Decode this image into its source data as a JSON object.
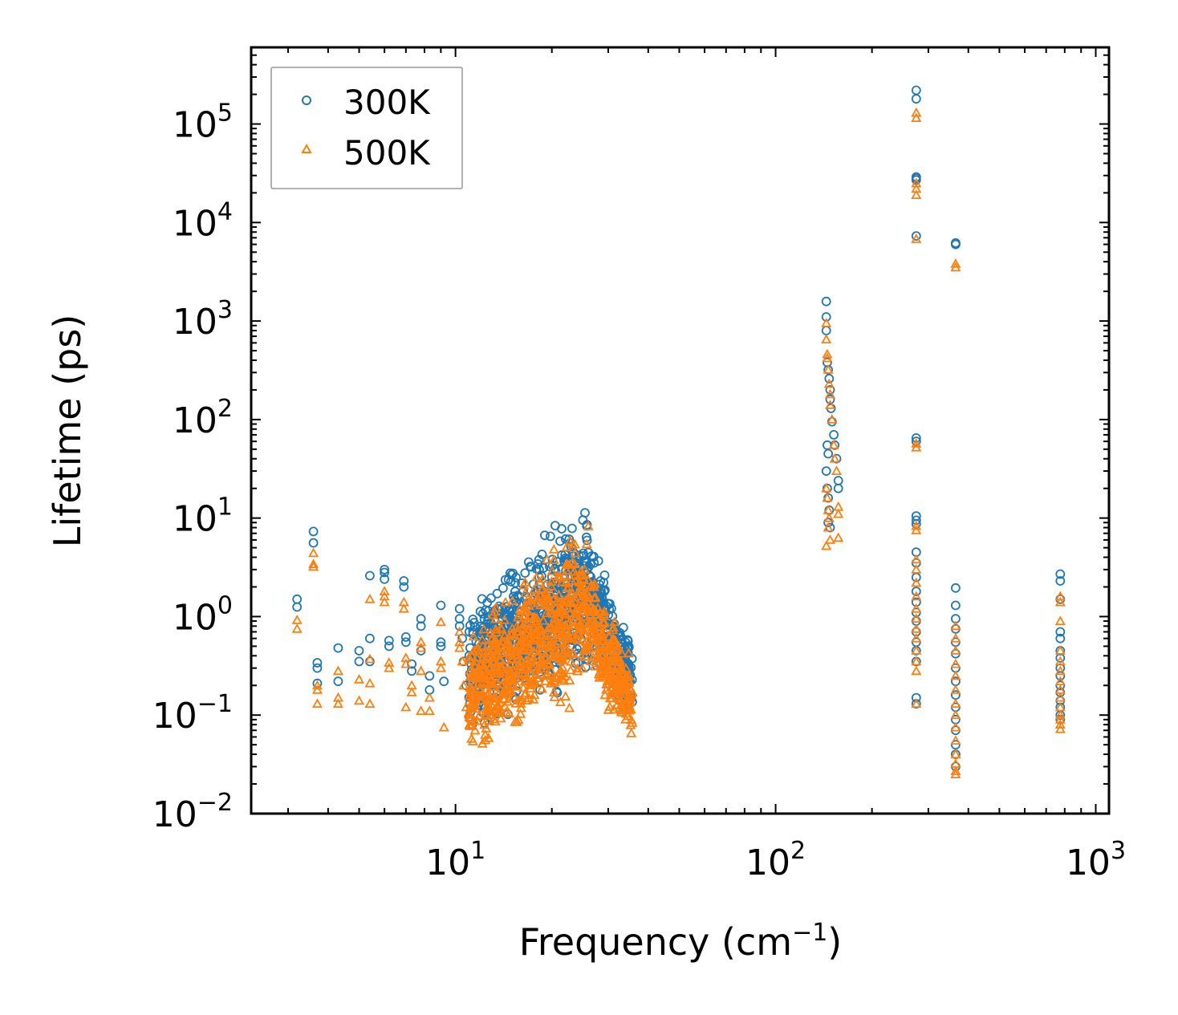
{
  "chart_data": {
    "type": "scatter",
    "title": "",
    "xlabel": "Frequency (cm",
    "xlabel_sup": "−1",
    "xlabel_end": ")",
    "ylabel": "Lifetime (ps)",
    "xscale": "log",
    "yscale": "log",
    "xlim": [
      2.3,
      1100
    ],
    "ylim": [
      0.01,
      600000
    ],
    "x_ticks": [
      {
        "base": "10",
        "exp": "1",
        "value": 10
      },
      {
        "base": "10",
        "exp": "2",
        "value": 100
      },
      {
        "base": "10",
        "exp": "3",
        "value": 1000
      }
    ],
    "y_ticks": [
      {
        "base": "10",
        "exp": "−2",
        "value": 0.01
      },
      {
        "base": "10",
        "exp": "−1",
        "value": 0.1
      },
      {
        "base": "10",
        "exp": "0",
        "value": 1
      },
      {
        "base": "10",
        "exp": "1",
        "value": 10
      },
      {
        "base": "10",
        "exp": "2",
        "value": 100
      },
      {
        "base": "10",
        "exp": "3",
        "value": 1000
      },
      {
        "base": "10",
        "exp": "4",
        "value": 10000
      },
      {
        "base": "10",
        "exp": "5",
        "value": 100000
      }
    ],
    "legend_position": "top-left",
    "series": [
      {
        "name": "300K",
        "marker": "circle",
        "color": "#1f77b4",
        "points": [
          [
            3.2,
            1.5
          ],
          [
            3.2,
            1.25
          ],
          [
            3.6,
            7.3
          ],
          [
            3.6,
            5.6
          ],
          [
            3.7,
            0.34
          ],
          [
            3.7,
            0.3
          ],
          [
            3.7,
            0.21
          ],
          [
            4.3,
            0.48
          ],
          [
            4.3,
            0.22
          ],
          [
            5.0,
            0.45
          ],
          [
            5.0,
            0.35
          ],
          [
            5.4,
            2.6
          ],
          [
            5.4,
            0.6
          ],
          [
            5.4,
            0.35
          ],
          [
            6.0,
            3.0
          ],
          [
            6.0,
            2.8
          ],
          [
            6.0,
            2.4
          ],
          [
            6.2,
            0.57
          ],
          [
            6.2,
            0.5
          ],
          [
            6.9,
            2.3
          ],
          [
            6.9,
            2.0
          ],
          [
            7.0,
            0.62
          ],
          [
            7.0,
            0.55
          ],
          [
            7.3,
            0.33
          ],
          [
            7.3,
            0.28
          ],
          [
            7.8,
            0.95
          ],
          [
            7.8,
            0.8
          ],
          [
            7.8,
            0.45
          ],
          [
            8.3,
            0.25
          ],
          [
            8.3,
            0.18
          ],
          [
            9.0,
            1.3
          ],
          [
            9.0,
            0.55
          ],
          [
            9.0,
            0.5
          ],
          [
            9.2,
            0.22
          ],
          [
            10.3,
            1.2
          ],
          [
            10.3,
            0.95
          ],
          [
            10.3,
            0.8
          ],
          [
            10.5,
            0.6
          ],
          [
            10.6,
            0.35
          ],
          [
            10.8,
            0.2
          ],
          [
            144,
            1580
          ],
          [
            144,
            1100
          ],
          [
            144,
            800
          ],
          [
            145,
            380
          ],
          [
            146,
            320
          ],
          [
            147,
            260
          ],
          [
            148,
            200
          ],
          [
            148,
            160
          ],
          [
            149,
            130
          ],
          [
            150,
            95
          ],
          [
            152,
            70
          ],
          [
            153,
            55
          ],
          [
            155,
            40
          ],
          [
            157,
            24
          ],
          [
            157,
            20
          ],
          [
            145,
            55
          ],
          [
            146,
            45
          ],
          [
            144,
            30
          ],
          [
            145,
            20
          ],
          [
            146,
            16
          ],
          [
            147,
            12
          ],
          [
            146,
            9
          ],
          [
            148,
            8
          ],
          [
            275,
            220000
          ],
          [
            275,
            180000
          ],
          [
            275,
            29000
          ],
          [
            275,
            28000
          ],
          [
            275,
            27000
          ],
          [
            275,
            7300
          ],
          [
            275,
            65
          ],
          [
            275,
            60
          ],
          [
            275,
            10.5
          ],
          [
            275,
            9.5
          ],
          [
            275,
            8.7
          ],
          [
            275,
            4.5
          ],
          [
            275,
            3.5
          ],
          [
            275,
            2.5
          ],
          [
            275,
            1.8
          ],
          [
            275,
            1.4
          ],
          [
            275,
            1.1
          ],
          [
            275,
            0.9
          ],
          [
            275,
            0.7
          ],
          [
            275,
            0.55
          ],
          [
            275,
            0.45
          ],
          [
            275,
            0.35
          ],
          [
            275,
            0.15
          ],
          [
            275,
            0.13
          ],
          [
            365,
            6200
          ],
          [
            365,
            6000
          ],
          [
            365,
            1.95
          ],
          [
            365,
            1.3
          ],
          [
            365,
            0.95
          ],
          [
            365,
            0.75
          ],
          [
            365,
            0.55
          ],
          [
            365,
            0.42
          ],
          [
            365,
            0.3
          ],
          [
            365,
            0.22
          ],
          [
            365,
            0.16
          ],
          [
            365,
            0.12
          ],
          [
            365,
            0.09
          ],
          [
            365,
            0.07
          ],
          [
            365,
            0.05
          ],
          [
            365,
            0.04
          ],
          [
            365,
            0.03
          ],
          [
            775,
            2.7
          ],
          [
            775,
            2.3
          ],
          [
            775,
            1.5
          ],
          [
            775,
            0.7
          ],
          [
            775,
            0.6
          ],
          [
            775,
            0.45
          ],
          [
            775,
            0.38
          ],
          [
            775,
            0.3
          ],
          [
            775,
            0.25
          ],
          [
            775,
            0.2
          ],
          [
            775,
            0.17
          ],
          [
            775,
            0.14
          ],
          [
            775,
            0.12
          ],
          [
            775,
            0.1
          ],
          [
            775,
            0.09
          ]
        ]
      },
      {
        "name": "500K",
        "marker": "triangle",
        "color": "#ff7f0e",
        "points": [
          [
            3.2,
            0.92
          ],
          [
            3.2,
            0.75
          ],
          [
            3.6,
            4.4
          ],
          [
            3.6,
            3.4
          ],
          [
            3.6,
            3.2
          ],
          [
            3.7,
            0.2
          ],
          [
            3.7,
            0.18
          ],
          [
            3.7,
            0.13
          ],
          [
            4.3,
            0.28
          ],
          [
            4.3,
            0.15
          ],
          [
            4.3,
            0.13
          ],
          [
            5.0,
            0.23
          ],
          [
            5.0,
            0.14
          ],
          [
            5.4,
            1.5
          ],
          [
            5.4,
            0.37
          ],
          [
            5.4,
            0.21
          ],
          [
            5.4,
            0.13
          ],
          [
            6.0,
            1.8
          ],
          [
            6.0,
            1.6
          ],
          [
            6.0,
            1.4
          ],
          [
            6.2,
            0.34
          ],
          [
            6.2,
            0.3
          ],
          [
            6.9,
            1.4
          ],
          [
            6.9,
            1.2
          ],
          [
            7.0,
            0.38
          ],
          [
            7.0,
            0.33
          ],
          [
            7.0,
            0.12
          ],
          [
            7.3,
            0.2
          ],
          [
            7.3,
            0.17
          ],
          [
            7.8,
            0.55
          ],
          [
            7.8,
            0.48
          ],
          [
            7.8,
            0.28
          ],
          [
            7.8,
            0.11
          ],
          [
            8.3,
            0.15
          ],
          [
            8.3,
            0.11
          ],
          [
            9.0,
            0.88
          ],
          [
            9.0,
            0.35
          ],
          [
            9.0,
            0.3
          ],
          [
            9.2,
            0.075
          ],
          [
            10.3,
            0.7
          ],
          [
            10.3,
            0.55
          ],
          [
            10.3,
            0.48
          ],
          [
            10.5,
            0.35
          ],
          [
            10.6,
            0.2
          ],
          [
            10.8,
            0.12
          ],
          [
            144,
            950
          ],
          [
            144,
            650
          ],
          [
            145,
            460
          ],
          [
            145,
            420
          ],
          [
            146,
            320
          ],
          [
            147,
            230
          ],
          [
            148,
            180
          ],
          [
            148,
            140
          ],
          [
            150,
            100
          ],
          [
            152,
            55
          ],
          [
            153,
            40
          ],
          [
            155,
            30
          ],
          [
            157,
            13
          ],
          [
            157,
            11
          ],
          [
            144,
            20
          ],
          [
            145,
            16
          ],
          [
            146,
            12
          ],
          [
            147,
            10
          ],
          [
            146,
            8
          ],
          [
            148,
            6
          ],
          [
            144,
            5.2
          ],
          [
            157,
            6.3
          ],
          [
            275,
            130000
          ],
          [
            275,
            115000
          ],
          [
            275,
            25000
          ],
          [
            275,
            22000
          ],
          [
            275,
            19000
          ],
          [
            275,
            6800
          ],
          [
            275,
            57
          ],
          [
            275,
            52
          ],
          [
            275,
            8.3
          ],
          [
            275,
            7.5
          ],
          [
            275,
            3.8
          ],
          [
            275,
            3.0
          ],
          [
            275,
            2.2
          ],
          [
            275,
            1.6
          ],
          [
            275,
            1.2
          ],
          [
            275,
            0.95
          ],
          [
            275,
            0.75
          ],
          [
            275,
            0.6
          ],
          [
            275,
            0.45
          ],
          [
            275,
            0.35
          ],
          [
            275,
            0.28
          ],
          [
            275,
            0.13
          ],
          [
            365,
            3800
          ],
          [
            365,
            3500
          ],
          [
            365,
            0.8
          ],
          [
            365,
            0.6
          ],
          [
            365,
            0.45
          ],
          [
            365,
            0.33
          ],
          [
            365,
            0.25
          ],
          [
            365,
            0.18
          ],
          [
            365,
            0.13
          ],
          [
            365,
            0.1
          ],
          [
            365,
            0.075
          ],
          [
            365,
            0.055
          ],
          [
            365,
            0.04
          ],
          [
            365,
            0.032
          ],
          [
            365,
            0.027
          ],
          [
            365,
            0.025
          ],
          [
            775,
            1.6
          ],
          [
            775,
            1.4
          ],
          [
            775,
            0.9
          ],
          [
            775,
            0.45
          ],
          [
            775,
            0.35
          ],
          [
            775,
            0.28
          ],
          [
            775,
            0.22
          ],
          [
            775,
            0.18
          ],
          [
            775,
            0.15
          ],
          [
            775,
            0.12
          ],
          [
            775,
            0.1
          ],
          [
            775,
            0.09
          ],
          [
            775,
            0.08
          ],
          [
            775,
            0.072
          ]
        ]
      }
    ]
  }
}
